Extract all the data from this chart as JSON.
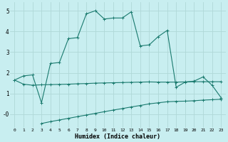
{
  "xlabel": "Humidex (Indice chaleur)",
  "bg_color": "#c8eef0",
  "grid_color": "#b0d8d8",
  "line_color": "#1a7a6e",
  "xlim": [
    -0.5,
    23.5
  ],
  "ylim": [
    -0.65,
    5.4
  ],
  "xticks": [
    0,
    1,
    2,
    3,
    4,
    5,
    6,
    7,
    8,
    9,
    10,
    11,
    12,
    13,
    14,
    15,
    16,
    17,
    18,
    19,
    20,
    21,
    22,
    23
  ],
  "yticks": [
    0,
    1,
    2,
    3,
    4,
    5
  ],
  "ytick_labels": [
    "-0",
    "1",
    "2",
    "3",
    "4",
    "5"
  ],
  "line1_x": [
    0,
    1,
    2,
    3,
    4,
    5,
    6,
    7,
    8,
    9,
    10,
    11,
    12,
    13,
    14,
    15,
    16,
    17,
    18,
    19,
    20,
    21,
    22,
    23
  ],
  "line1_y": [
    1.65,
    1.85,
    1.9,
    0.55,
    2.45,
    2.5,
    3.65,
    3.7,
    4.85,
    5.0,
    4.6,
    4.65,
    4.65,
    4.95,
    3.3,
    3.35,
    3.75,
    4.05,
    1.3,
    1.55,
    1.6,
    1.8,
    1.4,
    0.8
  ],
  "line2_x": [
    0,
    1,
    2,
    3,
    4,
    5,
    6,
    7,
    8,
    9,
    10,
    11,
    12,
    13,
    14,
    15,
    16,
    17,
    18,
    19,
    20,
    21,
    22,
    23
  ],
  "line2_y": [
    1.65,
    1.45,
    1.4,
    1.42,
    1.43,
    1.44,
    1.45,
    1.47,
    1.48,
    1.5,
    1.51,
    1.52,
    1.53,
    1.54,
    1.55,
    1.56,
    1.55,
    1.55,
    1.55,
    1.56,
    1.57,
    1.57,
    1.57,
    1.57
  ],
  "line3_x": [
    3,
    4,
    5,
    6,
    7,
    8,
    9,
    10,
    11,
    12,
    13,
    14,
    15,
    16,
    17,
    18,
    19,
    20,
    21,
    22,
    23
  ],
  "line3_y": [
    -0.45,
    -0.36,
    -0.28,
    -0.2,
    -0.12,
    -0.04,
    0.04,
    0.12,
    0.2,
    0.27,
    0.35,
    0.42,
    0.5,
    0.55,
    0.6,
    0.62,
    0.63,
    0.65,
    0.68,
    0.7,
    0.72
  ]
}
